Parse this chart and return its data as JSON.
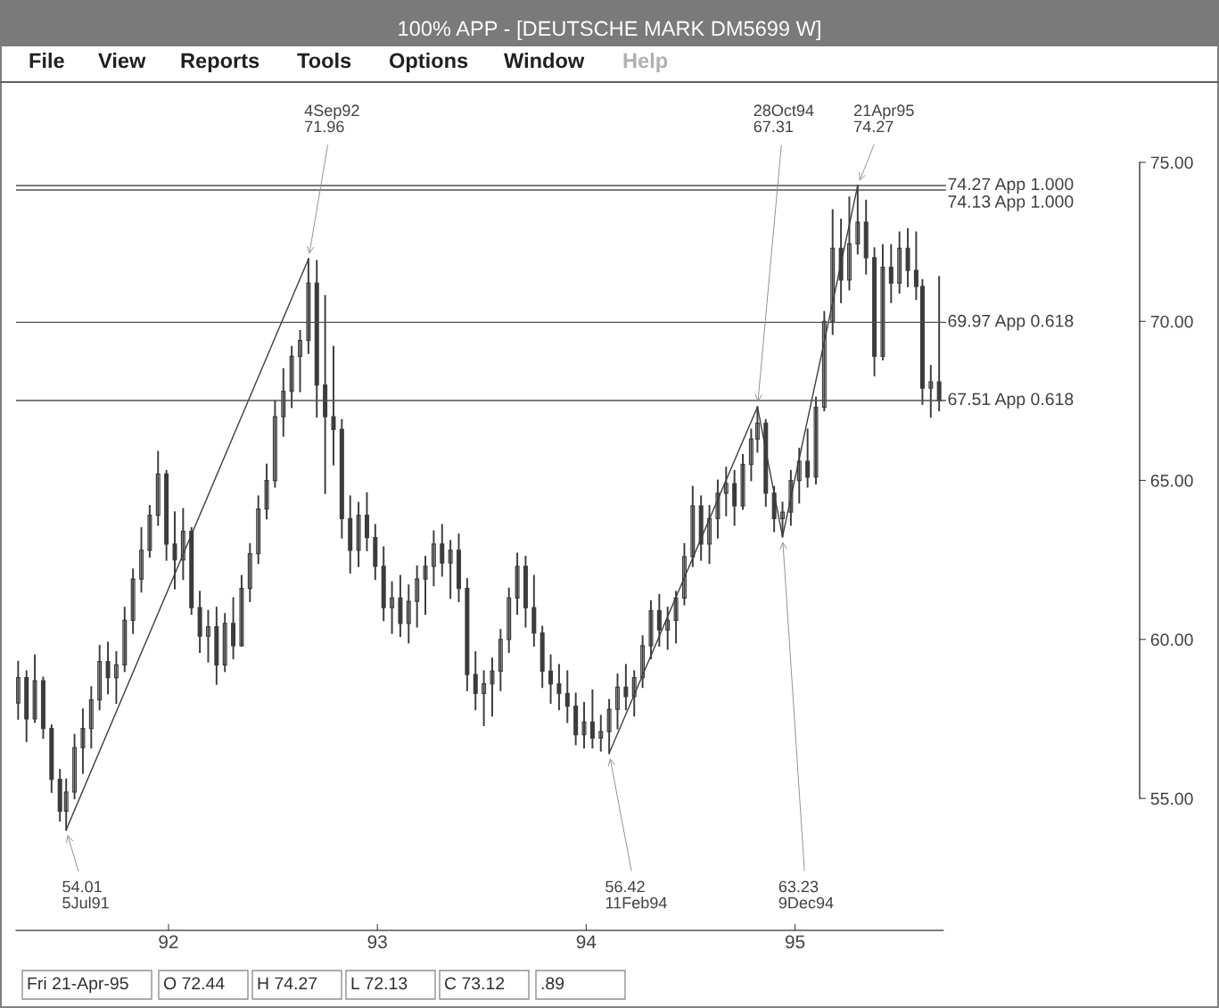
{
  "chart_data": {
    "type": "candlestick",
    "title": "100% APP - [DEUTSCHE MARK DM5699 W]",
    "x": [
      1991.28,
      1991.32,
      1991.36,
      1991.4,
      1991.44,
      1991.48,
      1991.51,
      1991.55,
      1991.59,
      1991.63,
      1991.67,
      1991.71,
      1991.75,
      1991.79,
      1991.83,
      1991.87,
      1991.91,
      1991.95,
      1991.99,
      1992.03,
      1992.07,
      1992.11,
      1992.15,
      1992.19,
      1992.23,
      1992.27,
      1992.31,
      1992.35,
      1992.39,
      1992.43,
      1992.47,
      1992.51,
      1992.55,
      1992.59,
      1992.63,
      1992.67,
      1992.71,
      1992.75,
      1992.79,
      1992.83,
      1992.87,
      1992.91,
      1992.95,
      1992.99,
      1993.03,
      1993.07,
      1993.11,
      1993.15,
      1993.19,
      1993.23,
      1993.27,
      1993.31,
      1993.35,
      1993.39,
      1993.43,
      1993.47,
      1993.51,
      1993.55,
      1993.59,
      1993.63,
      1993.67,
      1993.71,
      1993.75,
      1993.79,
      1993.83,
      1993.87,
      1993.91,
      1993.95,
      1993.99,
      1994.03,
      1994.07,
      1994.11,
      1994.15,
      1994.19,
      1994.23,
      1994.27,
      1994.31,
      1994.35,
      1994.39,
      1994.43,
      1994.47,
      1994.51,
      1994.55,
      1994.59,
      1994.63,
      1994.67,
      1994.71,
      1994.75,
      1994.79,
      1994.82,
      1994.86,
      1994.9,
      1994.94,
      1994.98,
      1995.02,
      1995.06,
      1995.1,
      1995.14,
      1995.18,
      1995.22,
      1995.26,
      1995.3,
      1995.34,
      1995.38,
      1995.42,
      1995.46,
      1995.5,
      1995.54,
      1995.58,
      1995.61,
      1995.65,
      1995.69
    ],
    "ohlc": [
      [
        58,
        59.3,
        57.5,
        58.8
      ],
      [
        58.8,
        59.0,
        56.8,
        57.5
      ],
      [
        57.5,
        59.5,
        57.4,
        58.7
      ],
      [
        58.7,
        58.8,
        56.9,
        57.2
      ],
      [
        57.2,
        57.3,
        55.2,
        55.6
      ],
      [
        55.6,
        55.9,
        54.3,
        54.6
      ],
      [
        54.6,
        55.6,
        54.01,
        55.2
      ],
      [
        55.2,
        57.0,
        55.0,
        56.6
      ],
      [
        56.6,
        57.8,
        55.8,
        57.2
      ],
      [
        57.2,
        58.5,
        56.6,
        58.1
      ],
      [
        58.1,
        59.8,
        57.8,
        59.3
      ],
      [
        59.3,
        59.9,
        58.3,
        58.8
      ],
      [
        58.8,
        59.6,
        58.0,
        59.2
      ],
      [
        59.2,
        61.0,
        59.0,
        60.6
      ],
      [
        60.6,
        62.2,
        60.2,
        61.9
      ],
      [
        61.9,
        63.5,
        61.5,
        62.8
      ],
      [
        62.8,
        64.2,
        62.6,
        63.9
      ],
      [
        63.9,
        65.9,
        63.6,
        65.2
      ],
      [
        65.2,
        65.3,
        62.5,
        63.0
      ],
      [
        63.0,
        64.0,
        61.6,
        62.5
      ],
      [
        62.5,
        64.1,
        61.9,
        63.4
      ],
      [
        63.4,
        63.5,
        60.8,
        61.0
      ],
      [
        61.0,
        61.5,
        59.6,
        60.1
      ],
      [
        60.1,
        60.9,
        59.3,
        60.4
      ],
      [
        60.4,
        61.0,
        58.6,
        59.2
      ],
      [
        59.2,
        60.8,
        59.0,
        60.5
      ],
      [
        60.5,
        61.3,
        59.4,
        59.8
      ],
      [
        59.8,
        62.0,
        59.8,
        61.6
      ],
      [
        61.6,
        63.0,
        61.2,
        62.7
      ],
      [
        62.7,
        64.5,
        62.4,
        64.1
      ],
      [
        64.1,
        65.5,
        63.8,
        65.0
      ],
      [
        65.0,
        67.5,
        64.8,
        67.0
      ],
      [
        67.0,
        68.5,
        66.4,
        67.8
      ],
      [
        67.8,
        69.2,
        67.3,
        68.9
      ],
      [
        68.9,
        69.7,
        67.8,
        69.4
      ],
      [
        69.4,
        71.96,
        69.0,
        71.2
      ],
      [
        71.2,
        71.9,
        67.0,
        68.0
      ],
      [
        68.0,
        70.8,
        64.6,
        67.0
      ],
      [
        67.0,
        69.2,
        65.5,
        66.6
      ],
      [
        66.6,
        66.9,
        63.2,
        63.8
      ],
      [
        63.8,
        64.5,
        62.1,
        62.8
      ],
      [
        62.8,
        64.3,
        62.3,
        63.9
      ],
      [
        63.9,
        64.6,
        62.8,
        63.2
      ],
      [
        63.2,
        63.6,
        61.9,
        62.3
      ],
      [
        62.3,
        62.9,
        60.6,
        61.0
      ],
      [
        61.0,
        61.8,
        60.2,
        61.3
      ],
      [
        61.3,
        62.0,
        60.1,
        60.5
      ],
      [
        60.5,
        61.7,
        59.9,
        61.2
      ],
      [
        61.2,
        62.3,
        60.4,
        61.9
      ],
      [
        61.9,
        62.6,
        60.8,
        62.3
      ],
      [
        62.3,
        63.4,
        61.7,
        63.0
      ],
      [
        63.0,
        63.6,
        62.0,
        62.4
      ],
      [
        62.4,
        63.1,
        61.3,
        62.8
      ],
      [
        62.8,
        63.3,
        61.2,
        61.6
      ],
      [
        61.6,
        61.9,
        58.4,
        58.9
      ],
      [
        58.9,
        59.6,
        57.8,
        58.3
      ],
      [
        58.3,
        59.0,
        57.3,
        58.6
      ],
      [
        58.6,
        59.4,
        57.6,
        59.0
      ],
      [
        59.0,
        60.3,
        58.4,
        60.0
      ],
      [
        60.0,
        61.6,
        59.6,
        61.3
      ],
      [
        61.3,
        62.7,
        60.8,
        62.3
      ],
      [
        62.3,
        62.6,
        60.4,
        61.0
      ],
      [
        61.0,
        62.0,
        59.8,
        60.2
      ],
      [
        60.2,
        60.4,
        58.5,
        59.0
      ],
      [
        59.0,
        59.5,
        58.0,
        58.6
      ],
      [
        58.6,
        59.2,
        57.8,
        58.3
      ],
      [
        58.3,
        59.0,
        57.4,
        57.9
      ],
      [
        57.9,
        58.3,
        56.7,
        57.0
      ],
      [
        57.0,
        58.0,
        56.6,
        57.4
      ],
      [
        57.4,
        58.4,
        56.6,
        56.9
      ],
      [
        56.9,
        57.6,
        56.5,
        57.1
      ],
      [
        57.1,
        58.1,
        56.42,
        57.8
      ],
      [
        57.8,
        58.9,
        57.2,
        58.5
      ],
      [
        58.5,
        59.2,
        57.8,
        58.2
      ],
      [
        58.2,
        59.0,
        57.6,
        58.8
      ],
      [
        58.8,
        60.1,
        58.5,
        59.8
      ],
      [
        59.8,
        61.2,
        59.4,
        60.9
      ],
      [
        60.9,
        61.4,
        59.8,
        60.3
      ],
      [
        60.3,
        61.0,
        59.7,
        60.6
      ],
      [
        60.6,
        61.5,
        59.9,
        61.3
      ],
      [
        61.3,
        63.0,
        61.1,
        62.6
      ],
      [
        62.6,
        64.8,
        62.3,
        64.2
      ],
      [
        64.2,
        64.5,
        62.5,
        63.0
      ],
      [
        63.0,
        64.2,
        62.4,
        63.8
      ],
      [
        63.8,
        65.0,
        63.2,
        64.6
      ],
      [
        64.6,
        65.4,
        63.9,
        64.9
      ],
      [
        64.9,
        65.3,
        63.6,
        64.2
      ],
      [
        64.2,
        65.8,
        64.1,
        65.5
      ],
      [
        65.5,
        66.6,
        65.0,
        66.3
      ],
      [
        66.3,
        67.31,
        65.9,
        66.8
      ],
      [
        66.8,
        66.9,
        64.2,
        64.6
      ],
      [
        64.6,
        64.8,
        63.4,
        63.8
      ],
      [
        63.8,
        64.3,
        63.23,
        64.0
      ],
      [
        64.0,
        65.3,
        63.6,
        65.0
      ],
      [
        65.0,
        66.0,
        64.3,
        65.6
      ],
      [
        65.6,
        66.6,
        64.8,
        65.1
      ],
      [
        65.1,
        67.6,
        64.9,
        67.3
      ],
      [
        67.3,
        70.3,
        67.2,
        70.0
      ],
      [
        70.0,
        73.5,
        69.6,
        72.3
      ],
      [
        72.3,
        73.2,
        70.6,
        71.3
      ],
      [
        71.3,
        73.9,
        71.0,
        72.44
      ],
      [
        72.44,
        74.27,
        72.13,
        73.12
      ],
      [
        73.12,
        73.8,
        71.5,
        72.0
      ],
      [
        72.0,
        72.3,
        68.3,
        68.9
      ],
      [
        68.9,
        72.4,
        68.8,
        71.7
      ],
      [
        71.7,
        72.4,
        70.6,
        71.2
      ],
      [
        71.2,
        72.8,
        70.9,
        72.3
      ],
      [
        72.3,
        72.9,
        71.1,
        71.6
      ],
      [
        71.6,
        72.8,
        70.7,
        71.1
      ],
      [
        71.1,
        71.3,
        67.4,
        67.9
      ],
      [
        67.9,
        68.6,
        67.0,
        68.1
      ],
      [
        68.1,
        71.4,
        67.2,
        67.5
      ]
    ],
    "color": "#3c3c3c",
    "series": [
      {
        "type": "line",
        "color": "#3c3c3c",
        "x": [
          1991.51,
          1992.67
        ],
        "values": [
          54.01,
          71.96
        ]
      },
      {
        "type": "line",
        "color": "#3c3c3c",
        "x": [
          1994.11,
          1994.82,
          1994.94,
          1995.3
        ],
        "values": [
          56.42,
          67.31,
          63.23,
          74.27
        ]
      }
    ],
    "ref_lines": [
      {
        "axis": "y",
        "value": 74.27,
        "label": "74.27 App 1.000",
        "color": "#505050"
      },
      {
        "axis": "y",
        "value": 74.13,
        "label": "74.13 App 1.000",
        "color": "#505050"
      },
      {
        "axis": "y",
        "value": 69.97,
        "label": "69.97 App 0.618",
        "color": "#505050"
      },
      {
        "axis": "y",
        "value": 67.51,
        "label": "67.51 App 0.618",
        "color": "#505050"
      }
    ],
    "annotations": [
      {
        "text": "4Sep92\n71.96",
        "x": 1992.67,
        "y": 71.96
      },
      {
        "text": "28Oct94\n67.31",
        "x": 1994.82,
        "y": 67.31
      },
      {
        "text": "21Apr95\n74.27",
        "x": 1995.3,
        "y": 74.27
      },
      {
        "text": "54.01\n5Jul91",
        "x": 1991.51,
        "y": 54.01
      },
      {
        "text": "56.42\n11Feb94",
        "x": 1994.11,
        "y": 56.42
      },
      {
        "text": "63.23\n9Dec94",
        "x": 1994.94,
        "y": 63.23
      },
      "File",
      "View",
      "Reports",
      "Tools",
      "Options",
      "Window",
      "Help",
      "Fri 21-Apr-95",
      "O 72.44",
      "H 74.27",
      "L 72.13",
      "C 73.12",
      ".89"
    ],
    "xlim": [
      1991.27,
      1996.65
    ],
    "xticks": [
      {
        "value": 1992,
        "label": "92"
      },
      {
        "value": 1993,
        "label": "93"
      },
      {
        "value": 1994,
        "label": "94"
      },
      {
        "value": 1995,
        "label": "95"
      }
    ],
    "ylim": [
      50.85,
      75
    ],
    "yticks": [
      {
        "value": 55,
        "label": "55.00"
      },
      {
        "value": 60,
        "label": "60.00"
      },
      {
        "value": 65,
        "label": "65.00"
      },
      {
        "value": 70,
        "label": "70.00"
      },
      {
        "value": 75,
        "label": "75.00"
      }
    ],
    "grid": false
  }
}
